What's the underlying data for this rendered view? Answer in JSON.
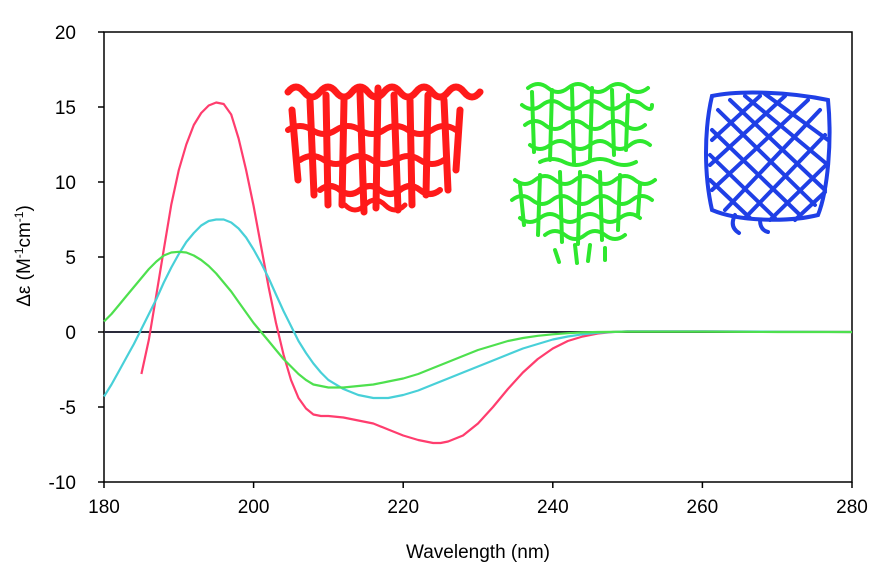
{
  "chart_data": {
    "type": "line",
    "xlabel": "Wavelength (nm)",
    "ylabel_main": "Δε (M",
    "ylabel_sup1": "-1",
    "ylabel_mid": "cm",
    "ylabel_sup2": "-1",
    "ylabel_end": ")",
    "xlim": [
      180,
      280
    ],
    "ylim": [
      -10,
      20
    ],
    "xticks": [
      180,
      200,
      220,
      240,
      260,
      280
    ],
    "yticks": [
      -10,
      -5,
      0,
      5,
      10,
      15,
      20
    ],
    "xtick_labels": [
      "180",
      "200",
      "220",
      "240",
      "260",
      "280"
    ],
    "ytick_labels": [
      "-10",
      "-5",
      "0",
      "5",
      "10",
      "15",
      "20"
    ],
    "zero_line": true,
    "grid": false,
    "series": [
      {
        "color": "#ff3d6e",
        "points": [
          [
            185,
            -2.8
          ],
          [
            186,
            -0.5
          ],
          [
            187,
            2.5
          ],
          [
            188,
            5.5
          ],
          [
            189,
            8.5
          ],
          [
            190,
            10.8
          ],
          [
            191,
            12.5
          ],
          [
            192,
            13.8
          ],
          [
            193,
            14.6
          ],
          [
            194,
            15.1
          ],
          [
            195,
            15.3
          ],
          [
            196,
            15.2
          ],
          [
            197,
            14.5
          ],
          [
            198,
            12.9
          ],
          [
            199,
            10.8
          ],
          [
            200,
            8.4
          ],
          [
            201,
            5.7
          ],
          [
            202,
            3.0
          ],
          [
            203,
            0.6
          ],
          [
            204,
            -1.5
          ],
          [
            205,
            -3.2
          ],
          [
            206,
            -4.4
          ],
          [
            207,
            -5.1
          ],
          [
            208,
            -5.5
          ],
          [
            209,
            -5.6
          ],
          [
            210,
            -5.6
          ],
          [
            212,
            -5.7
          ],
          [
            214,
            -5.9
          ],
          [
            216,
            -6.1
          ],
          [
            218,
            -6.5
          ],
          [
            220,
            -6.9
          ],
          [
            222,
            -7.2
          ],
          [
            224,
            -7.4
          ],
          [
            225,
            -7.4
          ],
          [
            226,
            -7.3
          ],
          [
            228,
            -6.9
          ],
          [
            230,
            -6.1
          ],
          [
            232,
            -5.0
          ],
          [
            234,
            -3.8
          ],
          [
            236,
            -2.7
          ],
          [
            238,
            -1.8
          ],
          [
            240,
            -1.1
          ],
          [
            242,
            -0.6
          ],
          [
            244,
            -0.3
          ],
          [
            246,
            -0.1
          ],
          [
            248,
            0.0
          ],
          [
            250,
            0.05
          ],
          [
            260,
            0.05
          ],
          [
            270,
            0.02
          ],
          [
            280,
            0.0
          ]
        ]
      },
      {
        "color": "#48d0d8",
        "points": [
          [
            180,
            -4.3
          ],
          [
            181,
            -3.5
          ],
          [
            182,
            -2.6
          ],
          [
            183,
            -1.7
          ],
          [
            184,
            -0.8
          ],
          [
            185,
            0.2
          ],
          [
            186,
            1.2
          ],
          [
            187,
            2.2
          ],
          [
            188,
            3.3
          ],
          [
            189,
            4.3
          ],
          [
            190,
            5.2
          ],
          [
            191,
            6.0
          ],
          [
            192,
            6.6
          ],
          [
            193,
            7.1
          ],
          [
            194,
            7.4
          ],
          [
            195,
            7.5
          ],
          [
            196,
            7.5
          ],
          [
            197,
            7.3
          ],
          [
            198,
            6.9
          ],
          [
            199,
            6.3
          ],
          [
            200,
            5.5
          ],
          [
            201,
            4.6
          ],
          [
            202,
            3.6
          ],
          [
            203,
            2.5
          ],
          [
            204,
            1.4
          ],
          [
            205,
            0.4
          ],
          [
            206,
            -0.6
          ],
          [
            207,
            -1.4
          ],
          [
            208,
            -2.1
          ],
          [
            209,
            -2.7
          ],
          [
            210,
            -3.2
          ],
          [
            212,
            -3.8
          ],
          [
            214,
            -4.2
          ],
          [
            216,
            -4.4
          ],
          [
            218,
            -4.4
          ],
          [
            220,
            -4.2
          ],
          [
            222,
            -3.9
          ],
          [
            224,
            -3.5
          ],
          [
            226,
            -3.1
          ],
          [
            228,
            -2.7
          ],
          [
            230,
            -2.3
          ],
          [
            232,
            -1.9
          ],
          [
            234,
            -1.5
          ],
          [
            236,
            -1.1
          ],
          [
            238,
            -0.8
          ],
          [
            240,
            -0.5
          ],
          [
            242,
            -0.3
          ],
          [
            244,
            -0.15
          ],
          [
            246,
            -0.05
          ],
          [
            248,
            0.0
          ],
          [
            250,
            0.05
          ],
          [
            260,
            0.05
          ],
          [
            270,
            0.02
          ],
          [
            280,
            0.0
          ]
        ]
      },
      {
        "color": "#4ee04e",
        "points": [
          [
            180,
            0.7
          ],
          [
            181,
            1.2
          ],
          [
            182,
            1.8
          ],
          [
            183,
            2.4
          ],
          [
            184,
            3.0
          ],
          [
            185,
            3.6
          ],
          [
            186,
            4.2
          ],
          [
            187,
            4.7
          ],
          [
            188,
            5.1
          ],
          [
            189,
            5.3
          ],
          [
            190,
            5.35
          ],
          [
            191,
            5.3
          ],
          [
            192,
            5.1
          ],
          [
            193,
            4.8
          ],
          [
            194,
            4.4
          ],
          [
            195,
            3.9
          ],
          [
            196,
            3.3
          ],
          [
            197,
            2.7
          ],
          [
            198,
            2.0
          ],
          [
            199,
            1.3
          ],
          [
            200,
            0.6
          ],
          [
            201,
            0.0
          ],
          [
            202,
            -0.6
          ],
          [
            203,
            -1.2
          ],
          [
            204,
            -1.8
          ],
          [
            205,
            -2.3
          ],
          [
            206,
            -2.8
          ],
          [
            207,
            -3.2
          ],
          [
            208,
            -3.5
          ],
          [
            209,
            -3.6
          ],
          [
            210,
            -3.7
          ],
          [
            212,
            -3.7
          ],
          [
            214,
            -3.6
          ],
          [
            216,
            -3.5
          ],
          [
            218,
            -3.3
          ],
          [
            220,
            -3.1
          ],
          [
            222,
            -2.8
          ],
          [
            224,
            -2.4
          ],
          [
            226,
            -2.0
          ],
          [
            228,
            -1.6
          ],
          [
            230,
            -1.2
          ],
          [
            232,
            -0.9
          ],
          [
            234,
            -0.6
          ],
          [
            236,
            -0.4
          ],
          [
            238,
            -0.25
          ],
          [
            240,
            -0.15
          ],
          [
            242,
            -0.08
          ],
          [
            244,
            -0.03
          ],
          [
            246,
            0.0
          ],
          [
            250,
            0.02
          ],
          [
            260,
            0.02
          ],
          [
            270,
            0.0
          ],
          [
            280,
            0.0
          ]
        ]
      }
    ]
  },
  "colors": {
    "structure_red": "#ff1a1a",
    "structure_green": "#2ee82e",
    "structure_blue": "#1f3fe6",
    "axis": "#000000",
    "zero_line": "#2a2a3a"
  },
  "insets": [
    {
      "icon": "alpha-helical-protein-structure"
    },
    {
      "icon": "mixed-protein-complex-structure"
    },
    {
      "icon": "beta-barrel-protein-structure"
    }
  ]
}
